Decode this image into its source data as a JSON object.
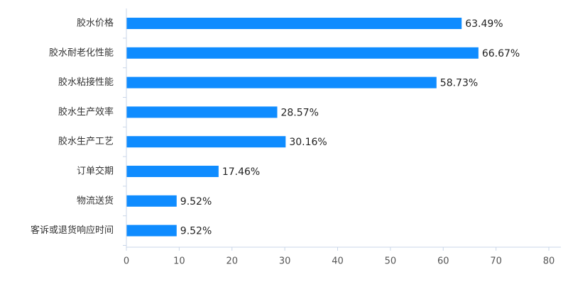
{
  "chart_data": {
    "type": "bar",
    "orientation": "horizontal",
    "categories": [
      "胶水价格",
      "胶水耐老化性能",
      "胶水粘接性能",
      "胶水生产效率",
      "胶水生产工艺",
      "订单交期",
      "物流送货",
      "客诉或退货响应时间"
    ],
    "values": [
      63.49,
      66.67,
      58.73,
      28.57,
      30.16,
      17.46,
      9.52,
      9.52
    ],
    "value_labels": [
      "63.49%",
      "66.67%",
      "58.73%",
      "28.57%",
      "30.16%",
      "17.46%",
      "9.52%",
      "9.52%"
    ],
    "x_ticks": [
      "0",
      "10",
      "20",
      "30",
      "40",
      "50",
      "60",
      "70",
      "80"
    ],
    "xlim": [
      0,
      80
    ],
    "title": "",
    "xlabel": "",
    "ylabel": "",
    "grid": false,
    "bar_color": "#0f8cff",
    "axis_color": "#c9d6e8"
  }
}
